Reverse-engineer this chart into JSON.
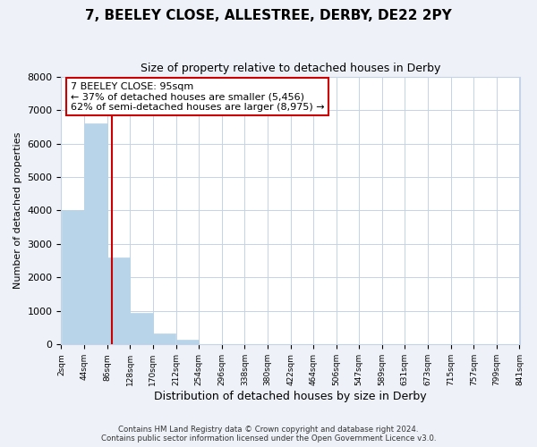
{
  "title": "7, BEELEY CLOSE, ALLESTREE, DERBY, DE22 2PY",
  "subtitle": "Size of property relative to detached houses in Derby",
  "xlabel": "Distribution of detached houses by size in Derby",
  "ylabel": "Number of detached properties",
  "bar_color": "#b8d4e8",
  "bin_edges": [
    2,
    44,
    86,
    128,
    170,
    212,
    254,
    296,
    338,
    380,
    422,
    464,
    506,
    547,
    589,
    631,
    673,
    715,
    757,
    799,
    841
  ],
  "bar_heights": [
    4000,
    6600,
    2600,
    950,
    320,
    130,
    0,
    0,
    0,
    0,
    0,
    0,
    0,
    0,
    0,
    0,
    0,
    0,
    0,
    0
  ],
  "tick_labels": [
    "2sqm",
    "44sqm",
    "86sqm",
    "128sqm",
    "170sqm",
    "212sqm",
    "254sqm",
    "296sqm",
    "338sqm",
    "380sqm",
    "422sqm",
    "464sqm",
    "506sqm",
    "547sqm",
    "589sqm",
    "631sqm",
    "673sqm",
    "715sqm",
    "757sqm",
    "799sqm",
    "841sqm"
  ],
  "ylim": [
    0,
    8000
  ],
  "yticks": [
    0,
    1000,
    2000,
    3000,
    4000,
    5000,
    6000,
    7000,
    8000
  ],
  "property_line_x": 95,
  "property_line_color": "#cc0000",
  "annotation_line1": "7 BEELEY CLOSE: 95sqm",
  "annotation_line2": "← 37% of detached houses are smaller (5,456)",
  "annotation_line3": "62% of semi-detached houses are larger (8,975) →",
  "footer_text": "Contains HM Land Registry data © Crown copyright and database right 2024.\nContains public sector information licensed under the Open Government Licence v3.0.",
  "bg_color": "#eef2f8",
  "plot_bg_color": "#ffffff",
  "grid_color": "#c5d3e8"
}
